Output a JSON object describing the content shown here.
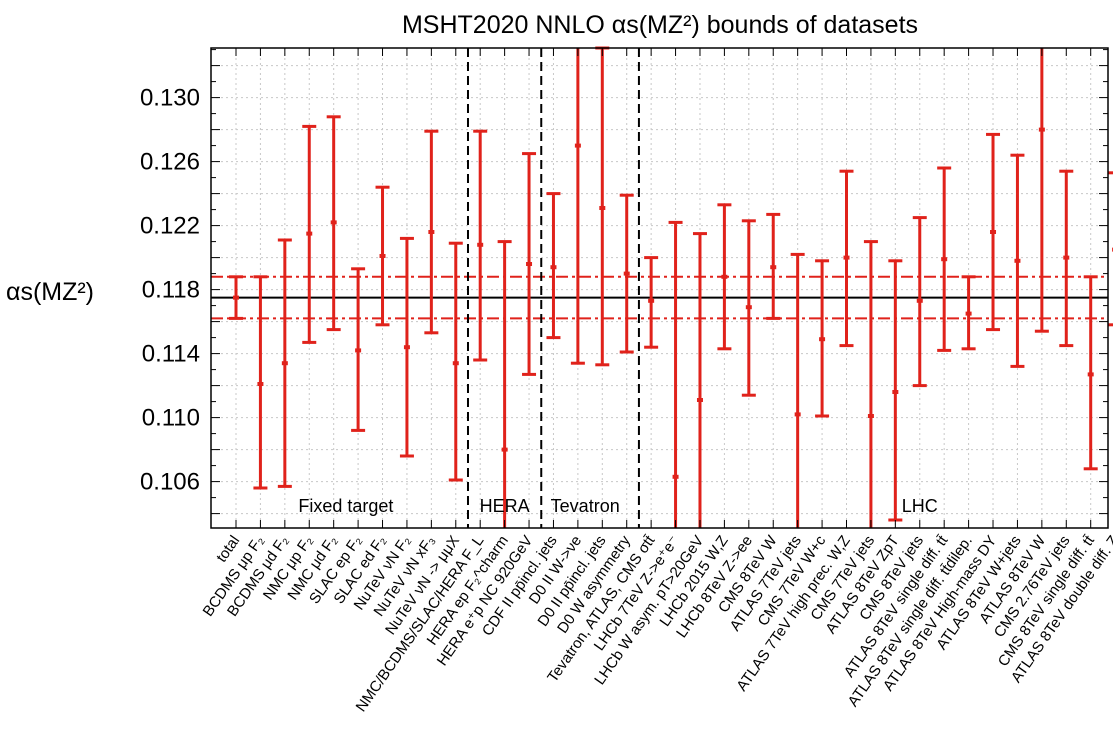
{
  "chart_data": {
    "type": "errorbar",
    "title": "MSHT2020 NNLO αs(MZ²) bounds of datasets",
    "ylabel": "αs(MZ²)",
    "xlabel": "",
    "ylim": [
      0.1031,
      0.1331
    ],
    "yticks": [
      0.106,
      0.11,
      0.114,
      0.118,
      0.122,
      0.126,
      0.13
    ],
    "ytick_labels": [
      "0.106",
      "0.110",
      "0.114",
      "0.118",
      "0.122",
      "0.126",
      "0.130"
    ],
    "grid": true,
    "central_value": 0.1175,
    "band": [
      0.1162,
      0.1188
    ],
    "dividers_after_index": [
      9,
      12,
      16
    ],
    "regions": [
      {
        "label": "Fixed target",
        "index_center": 4.5
      },
      {
        "label": "HERA",
        "index_center": 11
      },
      {
        "label": "Tevatron",
        "index_center": 14.3
      },
      {
        "label": "LHC",
        "index_center": 28
      }
    ],
    "categories": [
      "total",
      "BCDMS μp F₂",
      "BCDMS μd F₂",
      "NMC μp F₂",
      "NMC μd F₂",
      "SLAC ep F₂",
      "SLAC ed F₂",
      "NuTeV νN F₂",
      "NuTeV νN xF₃",
      "NuTeV νN -> μμX",
      "NMC/BCDMS/SLAC/HERA F_L",
      "HERA ep F₂^charm",
      "HERA e⁺p NC 920GeV",
      "CDF II pp̄incl. jets",
      "D0 II W->νe",
      "D0 II pp̄incl. jets",
      "D0 W asymmetry",
      "Tevatron, ATLAS, CMS σtt̄",
      "LHCb 7TeV Z->e⁺e⁻",
      "LHCb W asym. pT>20GeV",
      "LHCb 2015 W,Z",
      "LHCb 8TeV Z->ee",
      "CMS 8TeV W",
      "ATLAS 7TeV jets",
      "CMS 7TeV W+c",
      "ATLAS 7TeV high prec. W,Z",
      "CMS 7TeV jets",
      "ATLAS 8TeV ZpT",
      "CMS 8TeV jets",
      "ATLAS 8TeV single diff. tt̄",
      "ATLAS 8TeV single diff. tt̄dilep.",
      "ATLAS 8TeV High-mass DY",
      "ATLAS 8TeV W+jets",
      "ATLAS 8TeV W",
      "CMS 2.76TeV jets",
      "CMS 8TeV single diff. tt̄",
      "ATLAS 8TeV double diff. Z"
    ],
    "center": [
      0.1175,
      0.1121,
      0.1134,
      0.1215,
      0.1222,
      0.1142,
      0.1201,
      0.1144,
      0.1216,
      0.1134,
      0.1208,
      0.108,
      0.1196,
      0.1194,
      0.127,
      0.1231,
      0.119,
      0.1173,
      0.1063,
      0.1111,
      0.1188,
      0.1169,
      0.1194,
      0.1102,
      0.1149,
      0.12,
      0.1101,
      0.1116,
      0.1173,
      0.1199,
      0.1165,
      0.1216,
      0.1198,
      0.128,
      0.12,
      0.1127,
      0.1205
    ],
    "lower": [
      0.1162,
      0.1056,
      0.1057,
      0.1147,
      0.1155,
      0.1092,
      0.1158,
      0.1076,
      0.1153,
      0.1061,
      0.1136,
      0.09,
      0.1127,
      0.115,
      0.1134,
      0.1133,
      0.1141,
      0.1144,
      0.09,
      0.09,
      0.1143,
      0.1114,
      0.1162,
      0.09,
      0.1101,
      0.1145,
      0.09,
      0.1036,
      0.112,
      0.1142,
      0.1143,
      0.1155,
      0.1132,
      0.1154,
      0.1145,
      0.1068,
      0.1158
    ],
    "upper": [
      0.1188,
      0.1188,
      0.1211,
      0.1282,
      0.1288,
      0.1193,
      0.1244,
      0.1212,
      0.1279,
      0.1209,
      0.1279,
      0.121,
      0.1265,
      0.124,
      0.14,
      0.1331,
      0.1239,
      0.12,
      0.1222,
      0.1215,
      0.1233,
      0.1223,
      0.1227,
      0.1202,
      0.1198,
      0.1254,
      0.121,
      0.1198,
      0.1225,
      0.1256,
      0.1188,
      0.1277,
      0.1264,
      0.14,
      0.1254,
      0.1188,
      0.1253
    ]
  },
  "colors": {
    "errorbar": "#e0221b",
    "central_line": "#000000",
    "band_line": "#e0221b",
    "grid": "#c8c8c8",
    "divider": "#000000"
  }
}
